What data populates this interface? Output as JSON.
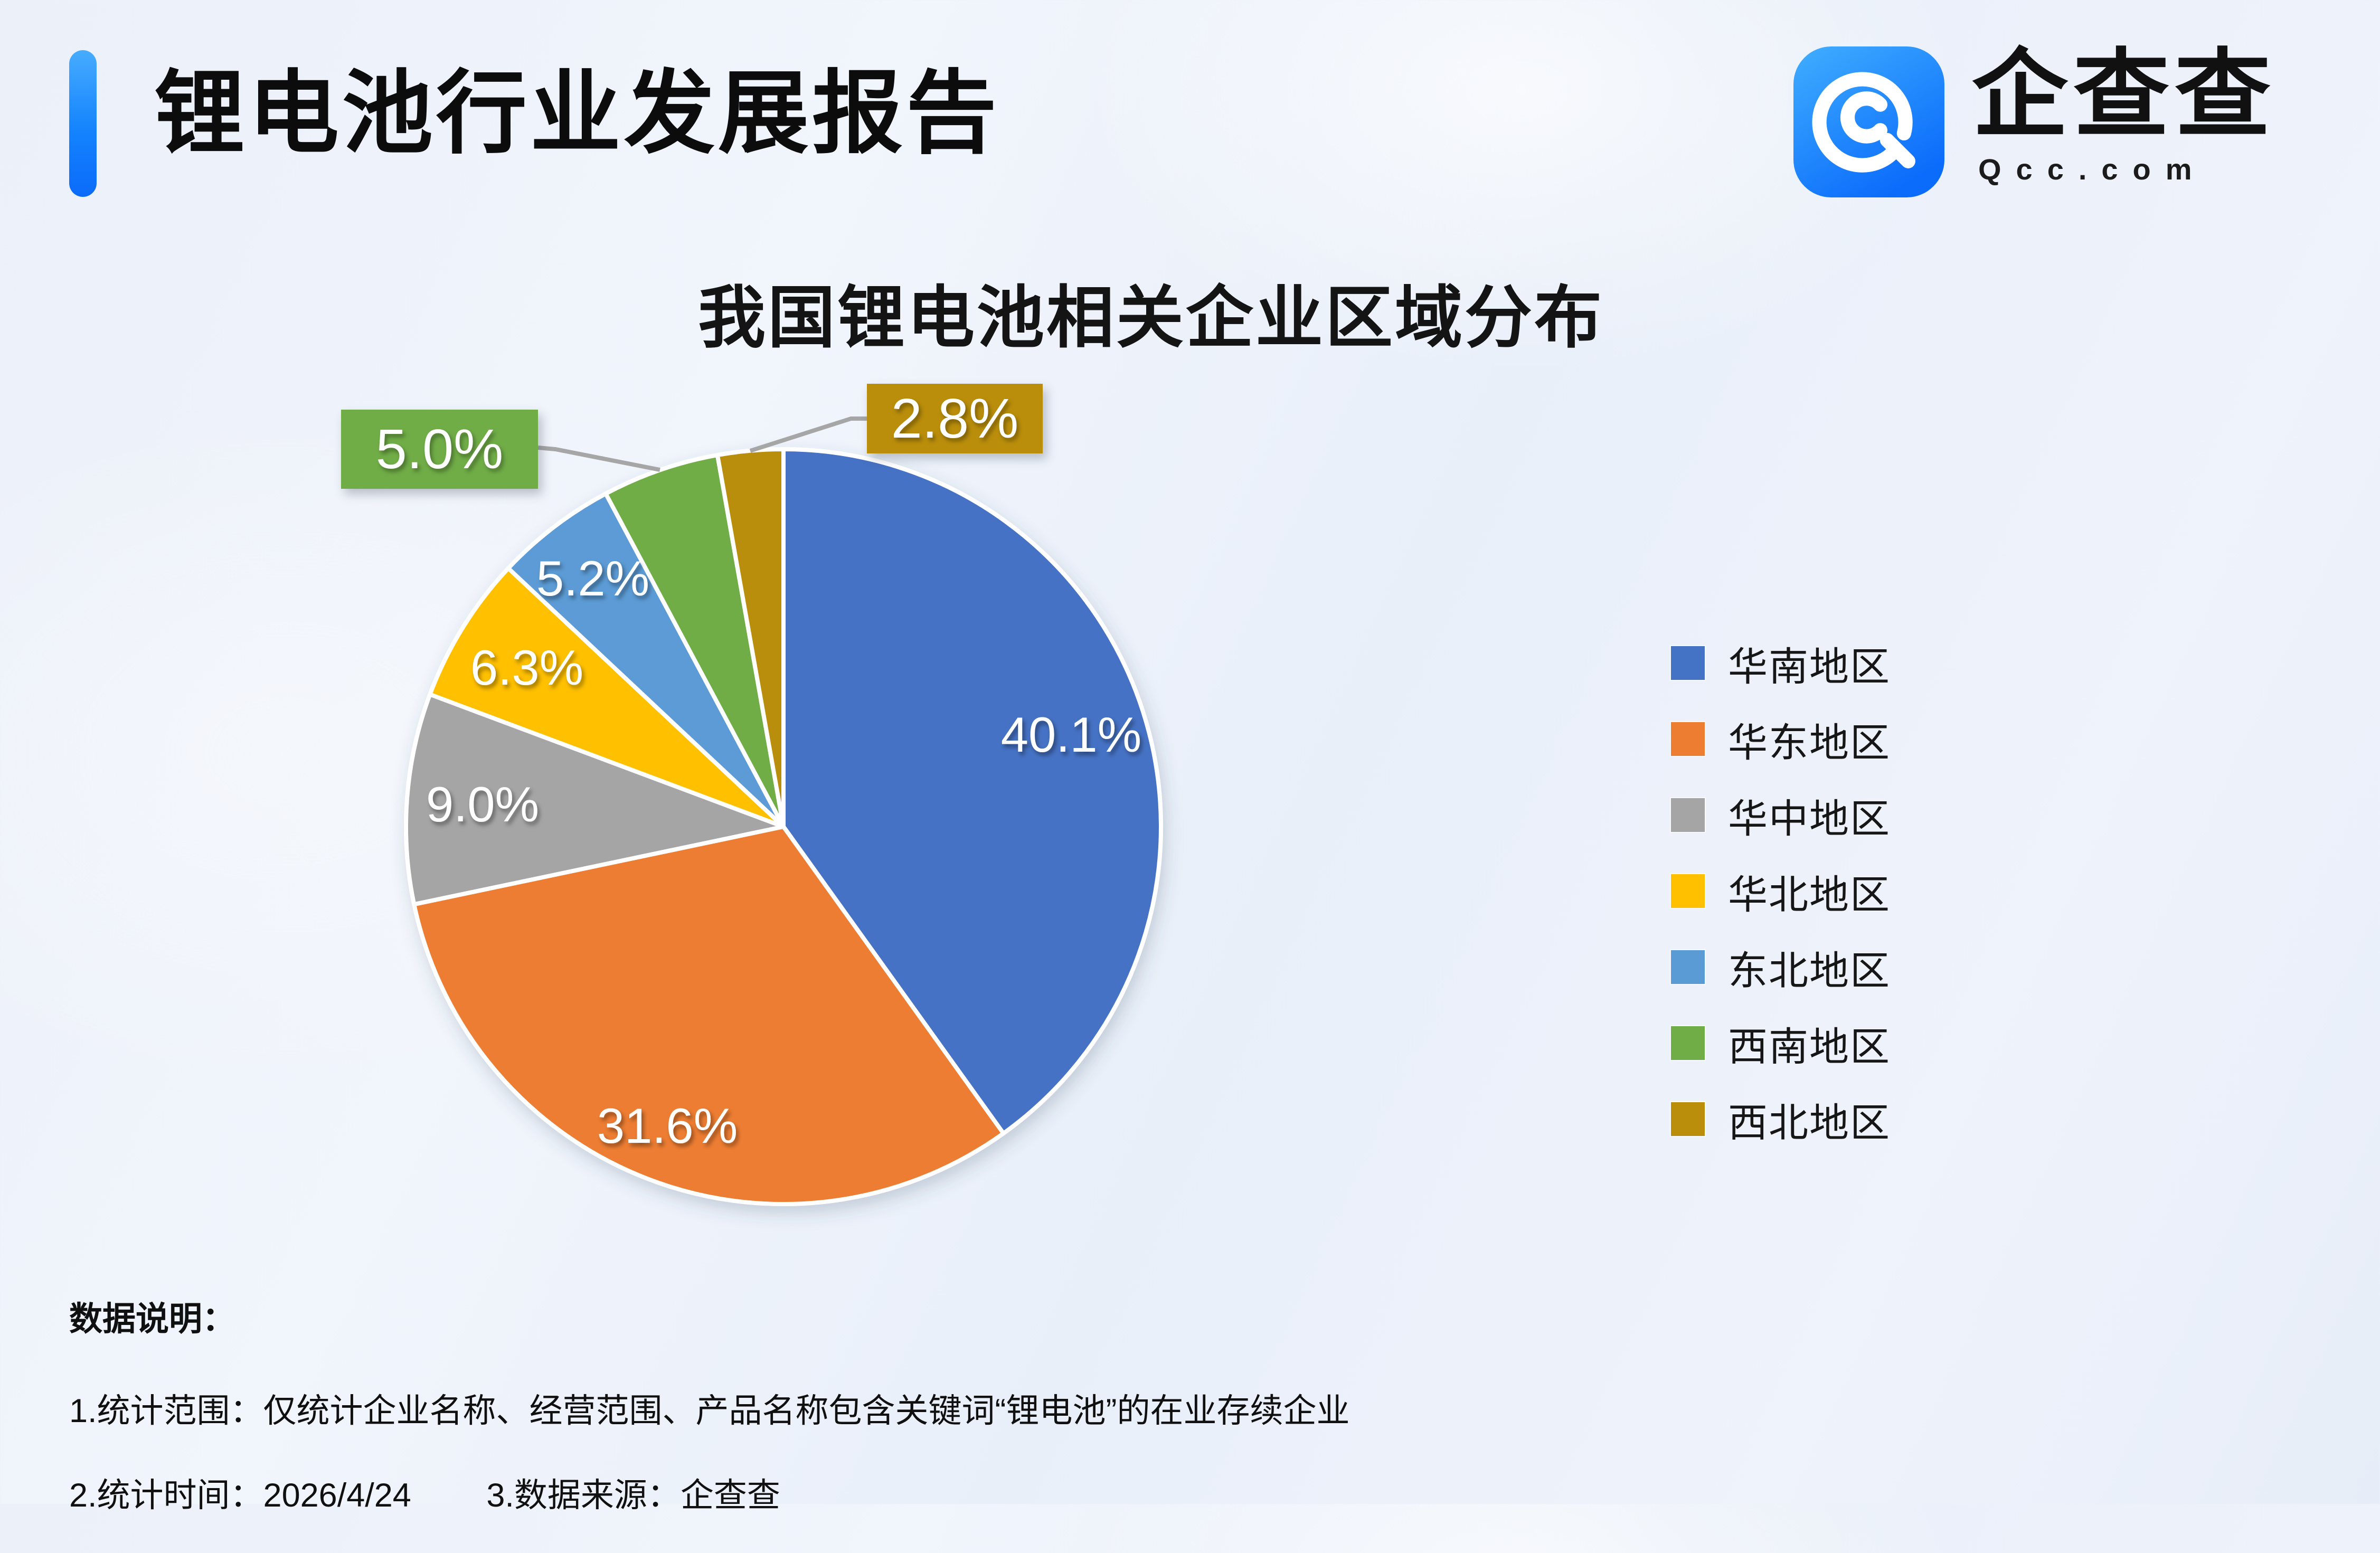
{
  "header": {
    "title": "锂电池行业发展报告",
    "accent_color": "#1483FD"
  },
  "logo": {
    "brand_name": "企查查",
    "domain": "Qcc.com",
    "icon": "qcc-swirl-icon",
    "icon_color": "#1E86FF"
  },
  "chart_data": {
    "type": "pie",
    "title": "我国锂电池相关企业区域分布",
    "categories": [
      "华南地区",
      "华东地区",
      "华中地区",
      "华北地区",
      "东北地区",
      "西南地区",
      "西北地区"
    ],
    "values": [
      40.1,
      31.6,
      9.0,
      6.3,
      5.2,
      5.0,
      2.8
    ],
    "percent_labels": [
      "40.1%",
      "31.6%",
      "9.0%",
      "6.3%",
      "5.2%",
      "5.0%",
      "2.8%"
    ],
    "colors": [
      "#4472C4",
      "#ED7D31",
      "#A5A5A5",
      "#FFC000",
      "#5B9BD5",
      "#70AD47",
      "#BA8E0B"
    ],
    "start_angle_deg": 0,
    "direction": "clockwise",
    "legend_position": "right",
    "callout_label_indices": [
      5,
      6
    ],
    "callout_line_color": "#A6A6A6",
    "slice_separator_color": "#FFFFFF"
  },
  "footer": {
    "heading": "数据说明：",
    "note1": "1.统计范围：仅统计企业名称、经营范围、产品名称包含关键词“锂电池”的在业存续企业",
    "note2": "2.统计时间：2026/4/24",
    "note3": "3.数据来源：企查查"
  }
}
